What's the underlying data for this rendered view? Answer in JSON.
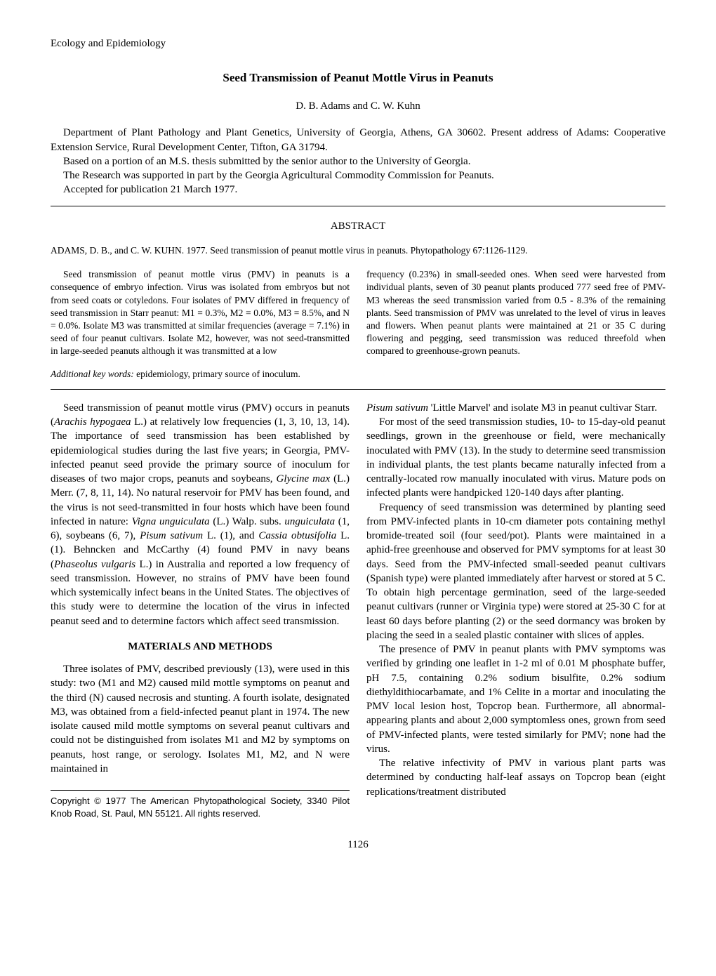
{
  "section_header": "Ecology and Epidemiology",
  "title": "Seed Transmission of Peanut Mottle Virus in Peanuts",
  "authors": "D. B. Adams and C. W. Kuhn",
  "affiliation": {
    "line1": "Department of Plant Pathology and Plant Genetics, University of Georgia, Athens, GA 30602. Present address of Adams: Cooperative Extension Service, Rural Development Center, Tifton, GA 31794.",
    "line2": "Based on a portion of an M.S. thesis submitted by the senior author to the University of Georgia.",
    "line3": "The Research was supported in part by the Georgia Agricultural Commodity Commission for Peanuts.",
    "line4": "Accepted for publication 21 March 1977."
  },
  "abstract_label": "ABSTRACT",
  "citation": "ADAMS, D. B., and C. W. KUHN. 1977. Seed transmission of peanut mottle virus in peanuts. Phytopathology 67:1126-1129.",
  "abstract": {
    "left": "Seed transmission of peanut mottle virus (PMV) in peanuts is a consequence of embryo infection. Virus was isolated from embryos but not from seed coats or cotyledons. Four isolates of PMV differed in frequency of seed transmission in Starr peanut: M1 = 0.3%, M2 = 0.0%, M3 = 8.5%, and N = 0.0%. Isolate M3 was transmitted at similar frequencies (average = 7.1%) in seed of four peanut cultivars. Isolate M2, however, was not seed-transmitted in large-seeded peanuts although it was transmitted at a low",
    "right": "frequency (0.23%) in small-seeded ones. When seed were harvested from individual plants, seven of 30 peanut plants produced 777 seed free of PMV-M3 whereas the seed transmission varied from 0.5 - 8.3% of the remaining plants. Seed transmission of PMV was unrelated to the level of virus in leaves and flowers. When peanut plants were maintained at 21 or 35 C during flowering and pegging, seed transmission was reduced threefold when compared to greenhouse-grown peanuts."
  },
  "keywords_label": "Additional key words:",
  "keywords_text": " epidemiology, primary source of inoculum.",
  "body": {
    "left": {
      "p1_a": "Seed transmission of peanut mottle virus (PMV) occurs in peanuts (",
      "p1_species1": "Arachis hypogaea",
      "p1_b": " L.) at relatively low frequencies (1, 3, 10, 13, 14). The importance of seed transmission has been established by epidemiological studies during the last five years; in Georgia, PMV-infected peanut seed provide the primary source of inoculum for diseases of two major crops, peanuts and soybeans, ",
      "p1_species2": "Glycine max",
      "p1_c": " (L.) Merr. (7, 8, 11, 14). No natural reservoir for PMV has been found, and the virus is not seed-transmitted in four hosts which have been found infected in nature: ",
      "p1_species3": "Vigna unguiculata",
      "p1_d": " (L.) Walp. subs. ",
      "p1_species4": "unguiculata",
      "p1_e": " (1, 6), soybeans (6, 7), ",
      "p1_species5": "Pisum sativum",
      "p1_f": " L. (1), and ",
      "p1_species6": "Cassia obtusifolia",
      "p1_g": " L. (1). Behncken and McCarthy (4) found PMV in navy beans (",
      "p1_species7": "Phaseolus vulgaris",
      "p1_h": " L.) in Australia and reported a low frequency of seed transmission. However, no strains of PMV have been found which systemically infect beans in the United States. The objectives of this study were to determine the location of the virus in infected peanut seed and to determine factors which affect seed transmission.",
      "section_title": "MATERIALS AND METHODS",
      "p2": "Three isolates of PMV, described previously (13), were used in this study: two (M1 and M2) caused mild mottle symptoms on peanut and the third (N) caused necrosis and stunting. A fourth isolate, designated M3, was obtained from a field-infected peanut plant in 1974. The new isolate caused mild mottle symptoms on several peanut cultivars and could not be distinguished from isolates M1 and M2 by symptoms on peanuts, host range, or serology. Isolates M1, M2, and N were maintained in"
    },
    "right": {
      "p1_species": "Pisum sativum",
      "p1_a": " 'Little Marvel' and isolate M3 in peanut cultivar Starr.",
      "p2": "For most of the seed transmission studies, 10- to 15-day-old peanut seedlings, grown in the greenhouse or field, were mechanically inoculated with PMV (13). In the study to determine seed transmission in individual plants, the test plants became naturally infected from a centrally-located row manually inoculated with virus. Mature pods on infected plants were handpicked 120-140 days after planting.",
      "p3": "Frequency of seed transmission was determined by planting seed from PMV-infected plants in 10-cm diameter pots containing methyl bromide-treated soil (four seed/pot). Plants were maintained in a aphid-free greenhouse and observed for PMV symptoms for at least 30 days. Seed from the PMV-infected small-seeded peanut cultivars (Spanish type) were planted immediately after harvest or stored at 5 C. To obtain high percentage germination, seed of the large-seeded peanut cultivars (runner or Virginia type) were stored at 25-30 C for at least 60 days before planting (2) or the seed dormancy was broken by placing the seed in a sealed plastic container with slices of apples.",
      "p4": "The presence of PMV in peanut plants with PMV symptoms was verified by grinding one leaflet in 1-2 ml of 0.01 M phosphate buffer, pH 7.5, containing 0.2% sodium bisulfite, 0.2% sodium diethyldithiocarbamate, and 1% Celite in a mortar and inoculating the PMV local lesion host, Topcrop bean. Furthermore, all abnormal-appearing plants and about 2,000 symptomless ones, grown from seed of PMV-infected plants, were tested similarly for PMV; none had the virus.",
      "p5": "The relative infectivity of PMV in various plant parts was determined by conducting half-leaf assays on Topcrop bean (eight replications/treatment distributed"
    }
  },
  "copyright": "Copyright © 1977 The American Phytopathological Society, 3340 Pilot Knob Road, St. Paul, MN 55121. All rights reserved.",
  "page_number": "1126"
}
